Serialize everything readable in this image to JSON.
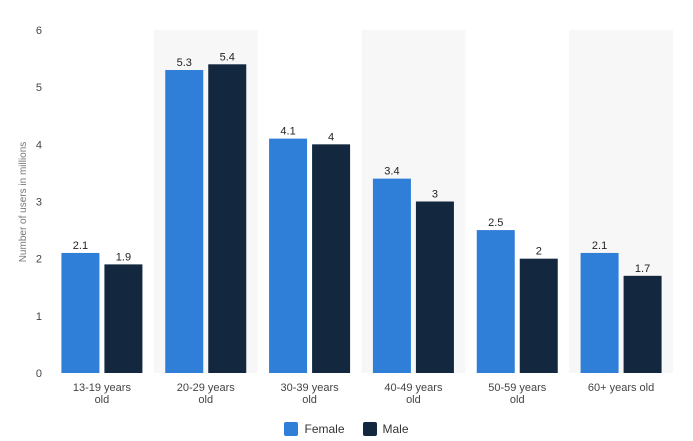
{
  "chart_data": {
    "type": "bar",
    "title": "",
    "xlabel": "",
    "ylabel": "Number of users in millions",
    "ylim": [
      0,
      6
    ],
    "yticks": [
      0,
      1,
      2,
      3,
      4,
      5,
      6
    ],
    "categories": [
      [
        "13-19 years",
        "old"
      ],
      [
        "20-29 years",
        "old"
      ],
      [
        "30-39 years",
        "old"
      ],
      [
        "40-49 years",
        "old"
      ],
      [
        "50-59 years",
        "old"
      ],
      [
        "60+ years old"
      ]
    ],
    "series": [
      {
        "name": "Female",
        "color": "#2f7ed8",
        "values": [
          2.1,
          5.3,
          4.1,
          3.4,
          2.5,
          2.1
        ]
      },
      {
        "name": "Male",
        "color": "#13273f",
        "values": [
          1.9,
          5.4,
          4,
          3,
          2,
          1.7
        ]
      }
    ],
    "grid": false,
    "alternate_band_color": "#f7f7f7",
    "legend_position": "bottom-center"
  }
}
